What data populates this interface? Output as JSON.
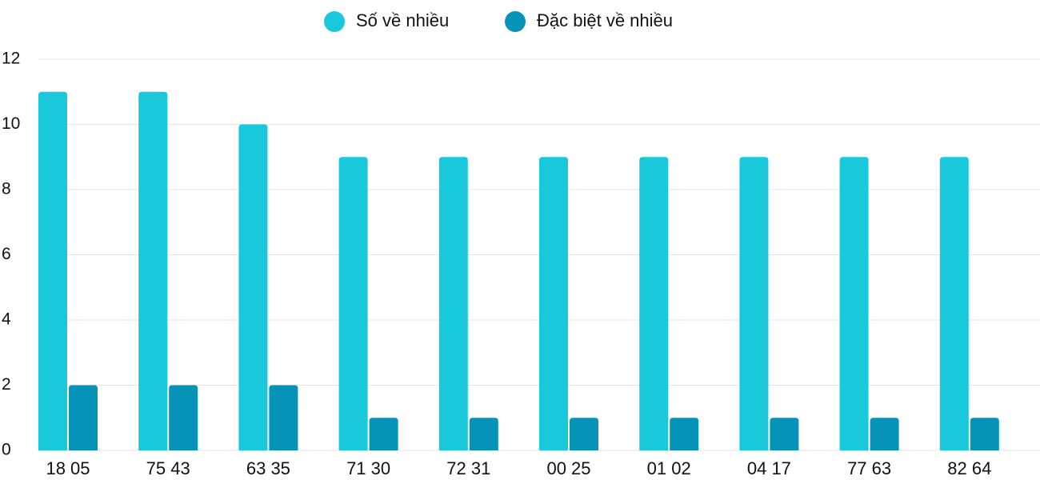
{
  "chart_data": {
    "type": "bar",
    "categories": [
      "18 05",
      "75 43",
      "63 35",
      "71 30",
      "72 31",
      "00 25",
      "01 02",
      "04 17",
      "77 63",
      "82 64"
    ],
    "series": [
      {
        "name": "Số về nhiều",
        "color": "#1ac8db",
        "values": [
          11,
          11,
          10,
          9,
          9,
          9,
          9,
          9,
          9,
          9
        ]
      },
      {
        "name": "Đặc biệt về nhiều",
        "color": "#0594b8",
        "values": [
          2,
          2,
          2,
          1,
          1,
          1,
          1,
          1,
          1,
          1
        ]
      }
    ],
    "ylim": [
      0,
      12
    ],
    "yticks": [
      0,
      2,
      4,
      6,
      8,
      10,
      12
    ],
    "grid": true,
    "legend": "top"
  }
}
